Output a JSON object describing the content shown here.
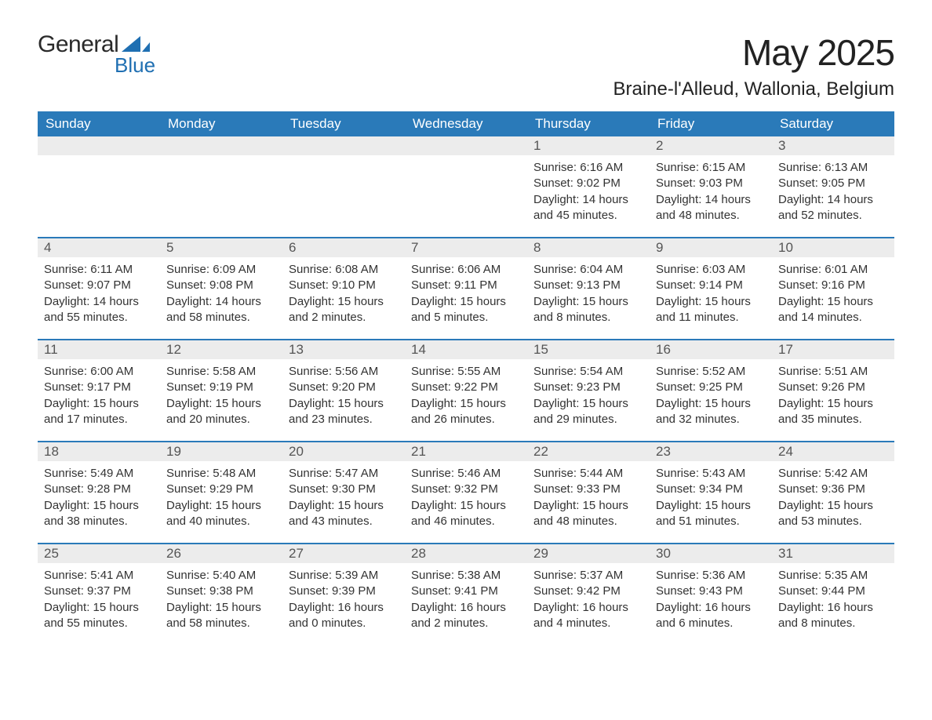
{
  "logo": {
    "word1": "General",
    "word2": "Blue",
    "word1_color": "#2a2a2a",
    "word2_color": "#1f6fb2",
    "shape_color": "#1f6fb2"
  },
  "title": "May 2025",
  "location": "Braine-l'Alleud, Wallonia, Belgium",
  "colors": {
    "header_bg": "#2a7ab9",
    "header_text": "#ffffff",
    "daynum_bg": "#ececec",
    "daynum_text": "#555555",
    "body_text": "#333333",
    "week_border": "#2a7ab9",
    "page_bg": "#ffffff"
  },
  "typography": {
    "title_fontsize": 46,
    "location_fontsize": 24,
    "weekday_fontsize": 17,
    "daynum_fontsize": 17,
    "body_fontsize": 15
  },
  "layout": {
    "columns": 7,
    "rows": 5,
    "cell_min_height": 128
  },
  "weekdays": [
    "Sunday",
    "Monday",
    "Tuesday",
    "Wednesday",
    "Thursday",
    "Friday",
    "Saturday"
  ],
  "labels": {
    "sunrise": "Sunrise:",
    "sunset": "Sunset:",
    "daylight": "Daylight:"
  },
  "weeks": [
    [
      {
        "empty": true
      },
      {
        "empty": true
      },
      {
        "empty": true
      },
      {
        "empty": true
      },
      {
        "day": "1",
        "sunrise": "6:16 AM",
        "sunset": "9:02 PM",
        "daylight": "14 hours and 45 minutes."
      },
      {
        "day": "2",
        "sunrise": "6:15 AM",
        "sunset": "9:03 PM",
        "daylight": "14 hours and 48 minutes."
      },
      {
        "day": "3",
        "sunrise": "6:13 AM",
        "sunset": "9:05 PM",
        "daylight": "14 hours and 52 minutes."
      }
    ],
    [
      {
        "day": "4",
        "sunrise": "6:11 AM",
        "sunset": "9:07 PM",
        "daylight": "14 hours and 55 minutes."
      },
      {
        "day": "5",
        "sunrise": "6:09 AM",
        "sunset": "9:08 PM",
        "daylight": "14 hours and 58 minutes."
      },
      {
        "day": "6",
        "sunrise": "6:08 AM",
        "sunset": "9:10 PM",
        "daylight": "15 hours and 2 minutes."
      },
      {
        "day": "7",
        "sunrise": "6:06 AM",
        "sunset": "9:11 PM",
        "daylight": "15 hours and 5 minutes."
      },
      {
        "day": "8",
        "sunrise": "6:04 AM",
        "sunset": "9:13 PM",
        "daylight": "15 hours and 8 minutes."
      },
      {
        "day": "9",
        "sunrise": "6:03 AM",
        "sunset": "9:14 PM",
        "daylight": "15 hours and 11 minutes."
      },
      {
        "day": "10",
        "sunrise": "6:01 AM",
        "sunset": "9:16 PM",
        "daylight": "15 hours and 14 minutes."
      }
    ],
    [
      {
        "day": "11",
        "sunrise": "6:00 AM",
        "sunset": "9:17 PM",
        "daylight": "15 hours and 17 minutes."
      },
      {
        "day": "12",
        "sunrise": "5:58 AM",
        "sunset": "9:19 PM",
        "daylight": "15 hours and 20 minutes."
      },
      {
        "day": "13",
        "sunrise": "5:56 AM",
        "sunset": "9:20 PM",
        "daylight": "15 hours and 23 minutes."
      },
      {
        "day": "14",
        "sunrise": "5:55 AM",
        "sunset": "9:22 PM",
        "daylight": "15 hours and 26 minutes."
      },
      {
        "day": "15",
        "sunrise": "5:54 AM",
        "sunset": "9:23 PM",
        "daylight": "15 hours and 29 minutes."
      },
      {
        "day": "16",
        "sunrise": "5:52 AM",
        "sunset": "9:25 PM",
        "daylight": "15 hours and 32 minutes."
      },
      {
        "day": "17",
        "sunrise": "5:51 AM",
        "sunset": "9:26 PM",
        "daylight": "15 hours and 35 minutes."
      }
    ],
    [
      {
        "day": "18",
        "sunrise": "5:49 AM",
        "sunset": "9:28 PM",
        "daylight": "15 hours and 38 minutes."
      },
      {
        "day": "19",
        "sunrise": "5:48 AM",
        "sunset": "9:29 PM",
        "daylight": "15 hours and 40 minutes."
      },
      {
        "day": "20",
        "sunrise": "5:47 AM",
        "sunset": "9:30 PM",
        "daylight": "15 hours and 43 minutes."
      },
      {
        "day": "21",
        "sunrise": "5:46 AM",
        "sunset": "9:32 PM",
        "daylight": "15 hours and 46 minutes."
      },
      {
        "day": "22",
        "sunrise": "5:44 AM",
        "sunset": "9:33 PM",
        "daylight": "15 hours and 48 minutes."
      },
      {
        "day": "23",
        "sunrise": "5:43 AM",
        "sunset": "9:34 PM",
        "daylight": "15 hours and 51 minutes."
      },
      {
        "day": "24",
        "sunrise": "5:42 AM",
        "sunset": "9:36 PM",
        "daylight": "15 hours and 53 minutes."
      }
    ],
    [
      {
        "day": "25",
        "sunrise": "5:41 AM",
        "sunset": "9:37 PM",
        "daylight": "15 hours and 55 minutes."
      },
      {
        "day": "26",
        "sunrise": "5:40 AM",
        "sunset": "9:38 PM",
        "daylight": "15 hours and 58 minutes."
      },
      {
        "day": "27",
        "sunrise": "5:39 AM",
        "sunset": "9:39 PM",
        "daylight": "16 hours and 0 minutes."
      },
      {
        "day": "28",
        "sunrise": "5:38 AM",
        "sunset": "9:41 PM",
        "daylight": "16 hours and 2 minutes."
      },
      {
        "day": "29",
        "sunrise": "5:37 AM",
        "sunset": "9:42 PM",
        "daylight": "16 hours and 4 minutes."
      },
      {
        "day": "30",
        "sunrise": "5:36 AM",
        "sunset": "9:43 PM",
        "daylight": "16 hours and 6 minutes."
      },
      {
        "day": "31",
        "sunrise": "5:35 AM",
        "sunset": "9:44 PM",
        "daylight": "16 hours and 8 minutes."
      }
    ]
  ]
}
